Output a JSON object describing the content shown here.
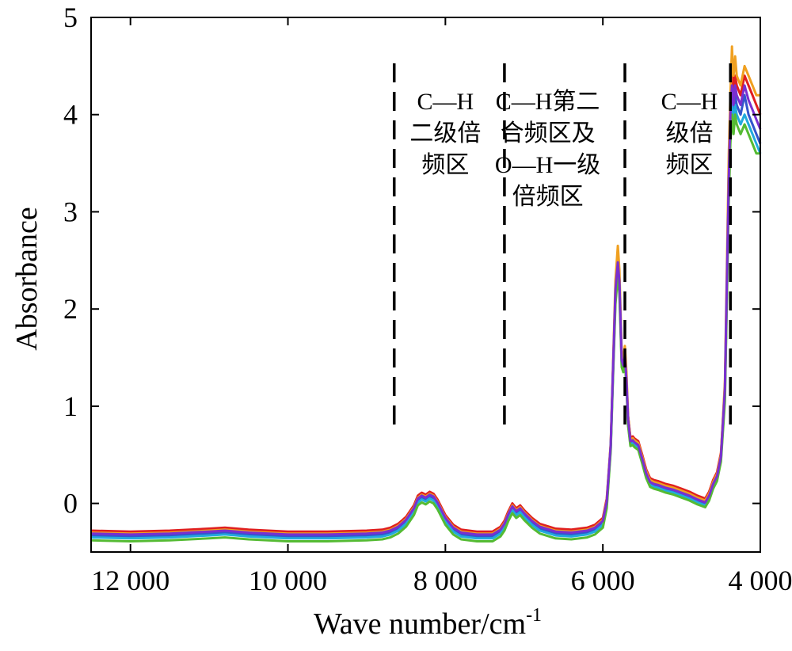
{
  "chart_data": {
    "type": "line",
    "title": "",
    "xlabel": "Wave number/cm",
    "xlabel_superscript": "-1",
    "ylabel": "Absorbance",
    "xlim": [
      12500,
      4000
    ],
    "ylim": [
      -0.5,
      5
    ],
    "x_reversed": true,
    "grid": false,
    "legend": "none",
    "x_ticks": [
      {
        "value": 12000,
        "label": "12 000"
      },
      {
        "value": 10000,
        "label": "10 000"
      },
      {
        "value": 8000,
        "label": "8 000"
      },
      {
        "value": 6000,
        "label": "6 000"
      },
      {
        "value": 4000,
        "label": "4 000"
      }
    ],
    "y_ticks": [
      {
        "value": 0,
        "label": "0"
      },
      {
        "value": 1,
        "label": "1"
      },
      {
        "value": 2,
        "label": "2"
      },
      {
        "value": 3,
        "label": "3"
      },
      {
        "value": 4,
        "label": "4"
      },
      {
        "value": 5,
        "label": "5"
      }
    ],
    "region_dividers": [
      8650,
      7250,
      5720,
      4380
    ],
    "region_labels": [
      {
        "x": 8000,
        "lines": [
          "C—H",
          "二级倍",
          "频区"
        ]
      },
      {
        "x": 6700,
        "lines": [
          "C—H第二",
          "合频区及",
          "O—H一级",
          "倍频区"
        ]
      },
      {
        "x": 4900,
        "lines": [
          "C—H",
          "级倍",
          "频区"
        ]
      }
    ],
    "x": [
      12500,
      12000,
      11500,
      11000,
      10800,
      10500,
      10000,
      9500,
      9000,
      8800,
      8700,
      8600,
      8500,
      8400,
      8350,
      8300,
      8250,
      8200,
      8150,
      8100,
      8000,
      7900,
      7800,
      7600,
      7400,
      7300,
      7250,
      7200,
      7150,
      7100,
      7050,
      7000,
      6900,
      6800,
      6600,
      6400,
      6200,
      6100,
      6000,
      5950,
      5900,
      5870,
      5840,
      5810,
      5790,
      5760,
      5740,
      5720,
      5700,
      5680,
      5650,
      5620,
      5600,
      5550,
      5500,
      5450,
      5400,
      5350,
      5300,
      5200,
      5100,
      5000,
      4900,
      4800,
      4700,
      4650,
      4600,
      4550,
      4500,
      4450,
      4400,
      4380,
      4360,
      4350,
      4340,
      4320,
      4300,
      4250,
      4200,
      4150,
      4100,
      4050,
      4000
    ],
    "series": [
      {
        "color": "#e01f1f",
        "values": [
          -0.28,
          -0.29,
          -0.28,
          -0.26,
          -0.25,
          -0.27,
          -0.29,
          -0.29,
          -0.28,
          -0.27,
          -0.25,
          -0.21,
          -0.14,
          -0.02,
          0.08,
          0.11,
          0.09,
          0.12,
          0.1,
          0.04,
          -0.12,
          -0.22,
          -0.27,
          -0.29,
          -0.29,
          -0.24,
          -0.18,
          -0.08,
          0.0,
          -0.05,
          -0.02,
          -0.07,
          -0.15,
          -0.21,
          -0.26,
          -0.27,
          -0.25,
          -0.22,
          -0.15,
          0.05,
          0.6,
          1.4,
          2.2,
          2.5,
          2.3,
          1.5,
          1.45,
          1.55,
          1.3,
          0.9,
          0.68,
          0.69,
          0.67,
          0.64,
          0.5,
          0.35,
          0.26,
          0.24,
          0.23,
          0.2,
          0.18,
          0.15,
          0.12,
          0.08,
          0.05,
          0.12,
          0.24,
          0.32,
          0.52,
          1.2,
          3.4,
          4.0,
          4.3,
          4.4,
          4.2,
          4.4,
          4.3,
          4.2,
          4.4,
          4.3,
          4.2,
          4.1,
          4.0
        ]
      },
      {
        "color": "#f0a020",
        "values": [
          -0.3,
          -0.31,
          -0.3,
          -0.28,
          -0.27,
          -0.29,
          -0.31,
          -0.31,
          -0.3,
          -0.29,
          -0.27,
          -0.23,
          -0.16,
          -0.04,
          0.06,
          0.09,
          0.07,
          0.1,
          0.08,
          0.02,
          -0.14,
          -0.24,
          -0.29,
          -0.31,
          -0.31,
          -0.26,
          -0.2,
          -0.1,
          -0.02,
          -0.07,
          -0.04,
          -0.09,
          -0.17,
          -0.23,
          -0.28,
          -0.29,
          -0.27,
          -0.24,
          -0.17,
          0.03,
          0.62,
          1.45,
          2.3,
          2.65,
          2.4,
          1.55,
          1.5,
          1.62,
          1.35,
          0.9,
          0.66,
          0.67,
          0.65,
          0.62,
          0.48,
          0.33,
          0.24,
          0.22,
          0.21,
          0.18,
          0.16,
          0.13,
          0.1,
          0.06,
          0.03,
          0.1,
          0.22,
          0.3,
          0.5,
          1.25,
          3.6,
          4.2,
          4.7,
          4.5,
          4.4,
          4.6,
          4.4,
          4.3,
          4.5,
          4.4,
          4.3,
          4.2,
          4.2
        ]
      },
      {
        "color": "#3355cc",
        "values": [
          -0.33,
          -0.34,
          -0.33,
          -0.31,
          -0.3,
          -0.32,
          -0.34,
          -0.34,
          -0.33,
          -0.32,
          -0.3,
          -0.26,
          -0.19,
          -0.07,
          0.03,
          0.06,
          0.04,
          0.07,
          0.05,
          -0.01,
          -0.17,
          -0.27,
          -0.32,
          -0.34,
          -0.34,
          -0.29,
          -0.23,
          -0.13,
          -0.05,
          -0.1,
          -0.07,
          -0.12,
          -0.2,
          -0.26,
          -0.31,
          -0.32,
          -0.3,
          -0.27,
          -0.2,
          0.0,
          0.58,
          1.38,
          2.15,
          2.45,
          2.25,
          1.45,
          1.4,
          1.5,
          1.25,
          0.85,
          0.63,
          0.64,
          0.62,
          0.59,
          0.45,
          0.3,
          0.21,
          0.19,
          0.18,
          0.15,
          0.13,
          0.1,
          0.07,
          0.03,
          0.0,
          0.07,
          0.19,
          0.27,
          0.47,
          1.15,
          3.3,
          3.9,
          4.2,
          4.1,
          4.0,
          4.2,
          4.1,
          4.0,
          4.2,
          4.0,
          3.9,
          3.8,
          3.7
        ]
      },
      {
        "color": "#22aadd",
        "values": [
          -0.35,
          -0.36,
          -0.35,
          -0.33,
          -0.32,
          -0.34,
          -0.36,
          -0.36,
          -0.35,
          -0.34,
          -0.32,
          -0.28,
          -0.21,
          -0.09,
          0.01,
          0.04,
          0.02,
          0.05,
          0.03,
          -0.03,
          -0.19,
          -0.29,
          -0.34,
          -0.36,
          -0.36,
          -0.31,
          -0.25,
          -0.15,
          -0.07,
          -0.12,
          -0.09,
          -0.14,
          -0.22,
          -0.28,
          -0.33,
          -0.34,
          -0.32,
          -0.29,
          -0.22,
          -0.02,
          0.56,
          1.35,
          2.1,
          2.4,
          2.2,
          1.42,
          1.37,
          1.47,
          1.22,
          0.82,
          0.61,
          0.62,
          0.6,
          0.57,
          0.43,
          0.28,
          0.19,
          0.17,
          0.16,
          0.13,
          0.11,
          0.08,
          0.05,
          0.01,
          -0.02,
          0.05,
          0.17,
          0.25,
          0.45,
          1.1,
          3.2,
          3.8,
          4.1,
          4.0,
          3.9,
          4.1,
          4.0,
          3.9,
          4.0,
          3.9,
          3.8,
          3.7,
          3.6
        ]
      },
      {
        "color": "#55bb33",
        "values": [
          -0.38,
          -0.39,
          -0.38,
          -0.36,
          -0.35,
          -0.37,
          -0.39,
          -0.39,
          -0.38,
          -0.37,
          -0.35,
          -0.31,
          -0.24,
          -0.12,
          -0.02,
          0.01,
          -0.01,
          0.02,
          0.0,
          -0.06,
          -0.22,
          -0.32,
          -0.37,
          -0.39,
          -0.39,
          -0.34,
          -0.28,
          -0.18,
          -0.1,
          -0.15,
          -0.12,
          -0.17,
          -0.25,
          -0.31,
          -0.36,
          -0.37,
          -0.35,
          -0.32,
          -0.25,
          -0.05,
          0.54,
          1.32,
          2.05,
          2.35,
          2.15,
          1.4,
          1.35,
          1.45,
          1.2,
          0.8,
          0.59,
          0.6,
          0.58,
          0.55,
          0.41,
          0.26,
          0.17,
          0.15,
          0.14,
          0.11,
          0.09,
          0.06,
          0.03,
          -0.01,
          -0.04,
          0.03,
          0.15,
          0.23,
          0.43,
          1.05,
          3.1,
          3.7,
          4.0,
          3.9,
          3.8,
          4.0,
          3.9,
          3.8,
          3.9,
          3.8,
          3.7,
          3.6,
          3.6
        ]
      },
      {
        "color": "#7a2fd0",
        "values": [
          -0.31,
          -0.32,
          -0.31,
          -0.29,
          -0.28,
          -0.3,
          -0.32,
          -0.32,
          -0.31,
          -0.3,
          -0.28,
          -0.24,
          -0.17,
          -0.05,
          0.05,
          0.08,
          0.06,
          0.09,
          0.07,
          0.01,
          -0.15,
          -0.25,
          -0.3,
          -0.32,
          -0.32,
          -0.27,
          -0.21,
          -0.11,
          -0.03,
          -0.08,
          -0.05,
          -0.1,
          -0.18,
          -0.24,
          -0.29,
          -0.3,
          -0.28,
          -0.25,
          -0.18,
          0.02,
          0.6,
          1.4,
          2.2,
          2.48,
          2.28,
          1.47,
          1.42,
          1.52,
          1.27,
          0.87,
          0.64,
          0.65,
          0.63,
          0.6,
          0.46,
          0.31,
          0.22,
          0.2,
          0.19,
          0.16,
          0.14,
          0.11,
          0.08,
          0.04,
          0.01,
          0.08,
          0.2,
          0.28,
          0.48,
          1.18,
          3.35,
          4.0,
          4.3,
          4.25,
          4.1,
          4.3,
          4.2,
          4.1,
          4.3,
          4.15,
          4.05,
          3.95,
          3.85
        ]
      }
    ]
  }
}
